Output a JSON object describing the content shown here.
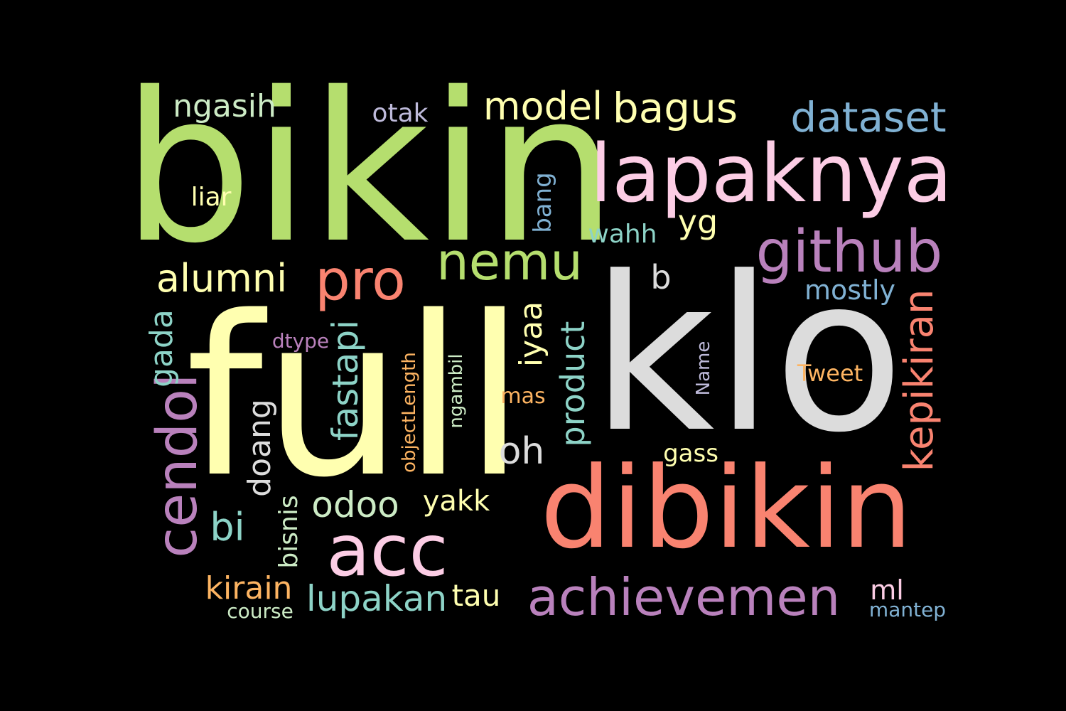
{
  "background": "#000000",
  "words": [
    {
      "text": "bikin",
      "color": "#B5DE6E"
    },
    {
      "text": "klo",
      "color": "#DCDCDC"
    },
    {
      "text": "full",
      "color": "#FFFFB0"
    },
    {
      "text": "dibikin",
      "color": "#F98370"
    },
    {
      "text": "lapaknya",
      "color": "#FCCDE5"
    },
    {
      "text": "github",
      "color": "#B981BC"
    },
    {
      "text": "acc",
      "color": "#FCCDE5"
    },
    {
      "text": "achievemen",
      "color": "#B981BC"
    },
    {
      "text": "cendol",
      "color": "#B981BC"
    },
    {
      "text": "pro",
      "color": "#F98370"
    },
    {
      "text": "nemu",
      "color": "#B5DE6E"
    },
    {
      "text": "dataset",
      "color": "#80B1D3"
    },
    {
      "text": "bagus",
      "color": "#FFFFB0"
    },
    {
      "text": "model",
      "color": "#FFFFB0"
    },
    {
      "text": "alumni",
      "color": "#FFFFB0"
    },
    {
      "text": "kepikiran",
      "color": "#F98370"
    },
    {
      "text": "fastapi",
      "color": "#8DD3C7"
    },
    {
      "text": "lupakan",
      "color": "#8DD3C7"
    },
    {
      "text": "odoo",
      "color": "#CCEBC5"
    },
    {
      "text": "product",
      "color": "#8DD3C7"
    },
    {
      "text": "iyaa",
      "color": "#FFFFB0"
    },
    {
      "text": "ngasih",
      "color": "#CCEBC5"
    },
    {
      "text": "gada",
      "color": "#8DD3C7"
    },
    {
      "text": "oh",
      "color": "#DCDCDC"
    },
    {
      "text": "doang",
      "color": "#DCDCDC"
    },
    {
      "text": "bi",
      "color": "#8DD3C7"
    },
    {
      "text": "kirain",
      "color": "#FDB462"
    },
    {
      "text": "yakk",
      "color": "#FFFFB0"
    },
    {
      "text": "tau",
      "color": "#FFFFB0"
    },
    {
      "text": "mostly",
      "color": "#80B1D3"
    },
    {
      "text": "bisnis",
      "color": "#CCEBC5"
    },
    {
      "text": "yg",
      "color": "#FFFFB0"
    },
    {
      "text": "b",
      "color": "#DCDCDC"
    },
    {
      "text": "wahh",
      "color": "#8DD3C7"
    },
    {
      "text": "ml",
      "color": "#FCCDE5"
    },
    {
      "text": "otak",
      "color": "#BEBADA"
    },
    {
      "text": "liar",
      "color": "#FFFFB0"
    },
    {
      "text": "bang",
      "color": "#80B1D3"
    },
    {
      "text": "gass",
      "color": "#FFFFB0"
    },
    {
      "text": "Tweet",
      "color": "#FDB462"
    },
    {
      "text": "objectLength",
      "color": "#FDB462"
    },
    {
      "text": "ngambil",
      "color": "#CCEBC5"
    },
    {
      "text": "Name",
      "color": "#BEBADA"
    },
    {
      "text": "dtype",
      "color": "#B981BC"
    },
    {
      "text": "mas",
      "color": "#FDB462"
    },
    {
      "text": "course",
      "color": "#CCEBC5"
    },
    {
      "text": "mantep",
      "color": "#80B1D3"
    }
  ]
}
